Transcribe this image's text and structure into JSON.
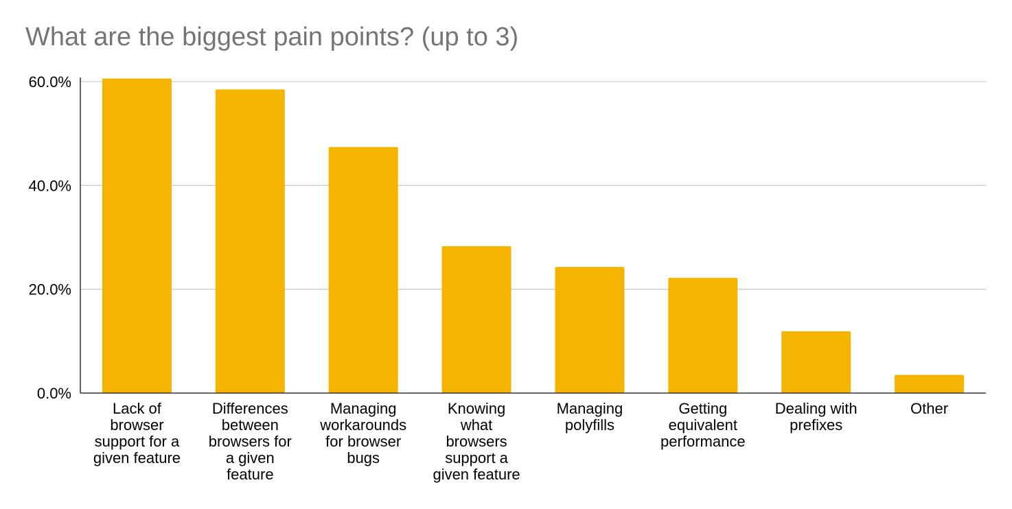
{
  "chart_data": {
    "type": "bar",
    "title": "What are the biggest pain points? (up to 3)",
    "xlabel": "",
    "ylabel": "",
    "categories": [
      "Lack of browser support for a given feature",
      "Differences between browsers for a given feature",
      "Managing workarounds for browser bugs",
      "Knowing what browsers support a given feature",
      "Managing polyfills",
      "Getting equivalent performance",
      "Dealing with prefixes",
      "Other"
    ],
    "category_lines": [
      [
        "Lack of",
        "browser",
        "support for a",
        "given feature"
      ],
      [
        "Differences",
        "between",
        "browsers for",
        "a given",
        "feature"
      ],
      [
        "Managing",
        "workarounds",
        "for browser",
        "bugs"
      ],
      [
        "Knowing",
        "what",
        "browsers",
        "support a",
        "given feature"
      ],
      [
        "Managing",
        "polyfills"
      ],
      [
        "Getting",
        "equivalent",
        "performance"
      ],
      [
        "Dealing with",
        "prefixes"
      ],
      [
        "Other"
      ]
    ],
    "values": [
      60.6,
      58.5,
      47.4,
      28.3,
      24.3,
      22.2,
      11.9,
      3.5
    ],
    "ylim": [
      0,
      60
    ],
    "yticks": [
      0,
      20,
      40,
      60
    ],
    "ytick_labels": [
      "0.0%",
      "20.0%",
      "40.0%",
      "60.0%"
    ],
    "grid": true,
    "legend": "none",
    "bar_color": "#f4b400",
    "grid_color": "#cccccc",
    "axis_color": "#333333",
    "title_color": "#757575"
  }
}
